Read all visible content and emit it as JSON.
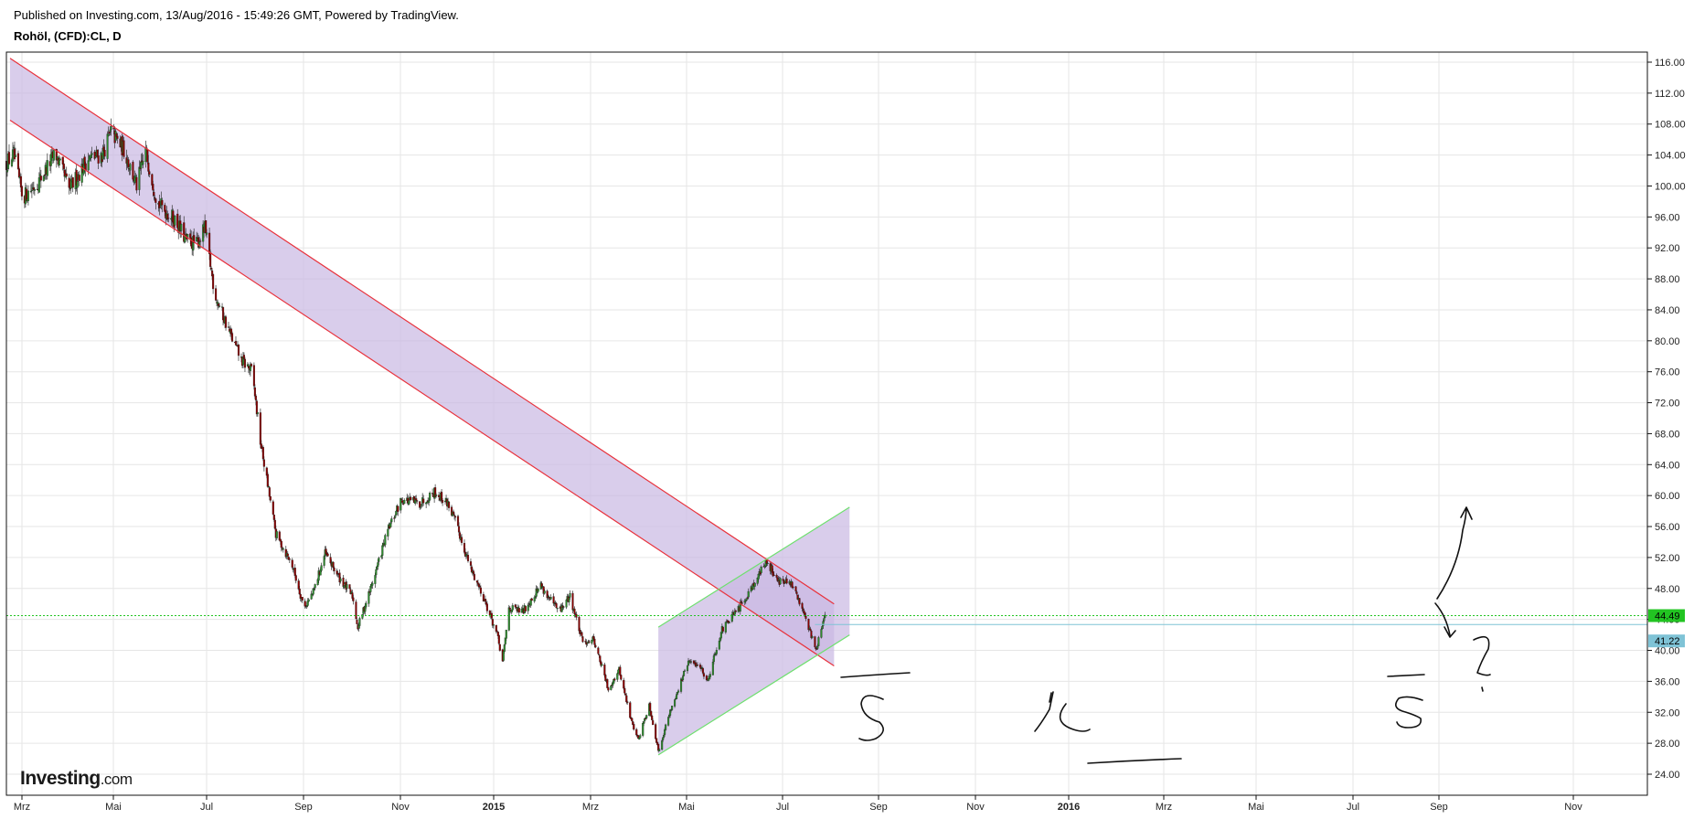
{
  "header": {
    "published": "Published on Investing.com, 13/Aug/2016 - 15:49:26 GMT, Powered by TradingView.",
    "symbol": "Rohöl, (CFD):CL, D"
  },
  "logo": {
    "brand": "Investing",
    "suffix": ".com"
  },
  "colors": {
    "up": "#2e8b2e",
    "down": "#8b0000",
    "channel_line": "#e8323c",
    "channel_fill": "#c9b8e2",
    "rising_line": "#6ee06e",
    "current_price": "#22c422",
    "reference_price": "#7fc3d6",
    "grid": "#e6e6e6"
  },
  "chart_data": {
    "type": "candlestick",
    "title": "",
    "x_axis": {
      "ticks": [
        {
          "label": "Mrz",
          "bold": false
        },
        {
          "label": "Mai",
          "bold": false
        },
        {
          "label": "Jul",
          "bold": false
        },
        {
          "label": "Sep",
          "bold": false
        },
        {
          "label": "Nov",
          "bold": false
        },
        {
          "label": "2015",
          "bold": true
        },
        {
          "label": "Mrz",
          "bold": false
        },
        {
          "label": "Mai",
          "bold": false
        },
        {
          "label": "Jul",
          "bold": false
        },
        {
          "label": "Sep",
          "bold": false
        },
        {
          "label": "Nov",
          "bold": false
        },
        {
          "label": "2016",
          "bold": true
        },
        {
          "label": "Mrz",
          "bold": false
        },
        {
          "label": "Mai",
          "bold": false
        },
        {
          "label": "Jul",
          "bold": false
        },
        {
          "label": "Sep",
          "bold": false
        },
        {
          "label": "Nov",
          "bold": false
        }
      ],
      "range": [
        "2014-02-25",
        "2016-12-15"
      ]
    },
    "y_axis": {
      "position": "right",
      "ticks": [
        "24.00",
        "28.00",
        "32.00",
        "36.00",
        "40.00",
        "44.00",
        "48.00",
        "52.00",
        "56.00",
        "60.00",
        "64.00",
        "68.00",
        "72.00",
        "76.00",
        "80.00",
        "84.00",
        "88.00",
        "92.00",
        "96.00",
        "100.00",
        "104.00",
        "108.00",
        "112.00",
        "116.00"
      ],
      "range": [
        22.0,
        117.0
      ]
    },
    "grid": true,
    "price_path": [
      [
        "2014-02-25",
        103.0
      ],
      [
        "2014-03-05",
        104.0
      ],
      [
        "2014-03-15",
        98.5
      ],
      [
        "2014-04-01",
        100.5
      ],
      [
        "2014-04-20",
        104.2
      ],
      [
        "2014-05-05",
        99.5
      ],
      [
        "2014-05-25",
        103.5
      ],
      [
        "2014-06-10",
        104.0
      ],
      [
        "2014-06-20",
        107.0
      ],
      [
        "2014-07-05",
        104.5
      ],
      [
        "2014-07-18",
        100.0
      ],
      [
        "2014-07-28",
        104.5
      ],
      [
        "2014-08-10",
        97.8
      ],
      [
        "2014-08-30",
        95.5
      ],
      [
        "2014-09-10",
        93.0
      ],
      [
        "2014-09-22",
        92.5
      ],
      [
        "2014-10-01",
        94.5
      ],
      [
        "2014-10-12",
        86.0
      ],
      [
        "2014-10-30",
        80.5
      ],
      [
        "2014-11-10",
        77.5
      ],
      [
        "2014-11-22",
        76.0
      ],
      [
        "2014-12-01",
        67.0
      ],
      [
        "2014-12-18",
        55.0
      ],
      [
        "2015-01-05",
        51.0
      ],
      [
        "2015-01-18",
        45.5
      ],
      [
        "2015-01-28",
        47.5
      ],
      [
        "2015-02-10",
        52.5
      ],
      [
        "2015-02-25",
        49.5
      ],
      [
        "2015-03-12",
        47.0
      ],
      [
        "2015-03-18",
        43.0
      ],
      [
        "2015-04-01",
        48.0
      ],
      [
        "2015-04-20",
        55.5
      ],
      [
        "2015-05-05",
        59.5
      ],
      [
        "2015-05-25",
        59.0
      ],
      [
        "2015-06-10",
        60.5
      ],
      [
        "2015-06-25",
        59.0
      ],
      [
        "2015-07-05",
        56.0
      ],
      [
        "2015-07-20",
        50.5
      ],
      [
        "2015-08-01",
        47.5
      ],
      [
        "2015-08-18",
        42.0
      ],
      [
        "2015-08-24",
        38.5
      ],
      [
        "2015-08-31",
        45.5
      ],
      [
        "2015-09-15",
        45.0
      ],
      [
        "2015-10-05",
        48.5
      ],
      [
        "2015-10-12",
        47.0
      ],
      [
        "2015-10-25",
        45.0
      ],
      [
        "2015-11-06",
        47.0
      ],
      [
        "2015-11-20",
        41.0
      ],
      [
        "2015-12-02",
        41.5
      ],
      [
        "2015-12-18",
        35.0
      ],
      [
        "2015-12-30",
        37.5
      ],
      [
        "2016-01-12",
        31.0
      ],
      [
        "2016-01-20",
        28.5
      ],
      [
        "2016-02-01",
        33.0
      ],
      [
        "2016-02-11",
        27.0
      ],
      [
        "2016-02-25",
        32.5
      ],
      [
        "2016-03-15",
        38.5
      ],
      [
        "2016-03-28",
        38.0
      ],
      [
        "2016-04-05",
        36.0
      ],
      [
        "2016-04-20",
        42.5
      ],
      [
        "2016-05-10",
        45.5
      ],
      [
        "2016-05-30",
        49.5
      ],
      [
        "2016-06-09",
        51.5
      ],
      [
        "2016-06-22",
        49.0
      ],
      [
        "2016-07-06",
        48.5
      ],
      [
        "2016-07-20",
        45.0
      ],
      [
        "2016-08-02",
        40.0
      ],
      [
        "2016-08-12",
        44.5
      ]
    ],
    "annotations": {
      "descending_channel": {
        "upper": [
          [
            "2014-03-01",
            116.5
          ],
          [
            "2016-08-22",
            46.0
          ]
        ],
        "lower": [
          [
            "2014-03-01",
            108.5
          ],
          [
            "2016-08-22",
            38.0
          ]
        ]
      },
      "rising_channel": {
        "upper": [
          [
            "2016-02-11",
            43.0
          ],
          [
            "2016-09-08",
            58.5
          ]
        ],
        "lower": [
          [
            "2016-02-11",
            26.5
          ],
          [
            "2016-09-08",
            42.0
          ]
        ]
      },
      "current_price": 44.49,
      "reference_price": 41.22,
      "reference_line_from": "2016-08-01",
      "handwritten_marks": [
        "S",
        "K",
        "S",
        "?"
      ]
    },
    "price_labels": {
      "current": "44.49",
      "reference": "41.22"
    }
  }
}
